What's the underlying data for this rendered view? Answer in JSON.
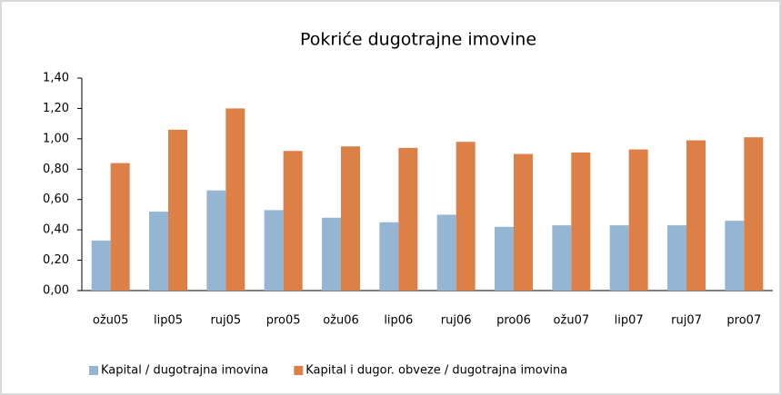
{
  "chart_data": {
    "type": "bar",
    "title": "Pokriće dugotrajne imovine",
    "categories": [
      "ožu05",
      "lip05",
      "ruj05",
      "pro05",
      "ožu06",
      "lip06",
      "ruj06",
      "pro06",
      "ožu07",
      "lip07",
      "ruj07",
      "pro07"
    ],
    "series": [
      {
        "name": "Kapital / dugotrajna imovina",
        "color": "#94b6d2",
        "values": [
          0.33,
          0.52,
          0.66,
          0.53,
          0.48,
          0.45,
          0.5,
          0.42,
          0.43,
          0.43,
          0.43,
          0.46
        ]
      },
      {
        "name": "Kapital i dugor. obveze / dugotrajna imovina",
        "color": "#dd8047",
        "values": [
          0.84,
          1.06,
          1.2,
          0.92,
          0.95,
          0.94,
          0.98,
          0.9,
          0.91,
          0.93,
          0.99,
          1.01
        ]
      }
    ],
    "ylim": [
      0,
      1.4
    ],
    "yticks": [
      {
        "value": 0,
        "label": "0,00"
      },
      {
        "value": 0.2,
        "label": "0,20"
      },
      {
        "value": 0.4,
        "label": "0,40"
      },
      {
        "value": 0.6,
        "label": "0,60"
      },
      {
        "value": 0.8,
        "label": "0,80"
      },
      {
        "value": 1.0,
        "label": "1,00"
      },
      {
        "value": 1.2,
        "label": "1,20"
      },
      {
        "value": 1.4,
        "label": "1,40"
      }
    ],
    "legend": "bottom"
  }
}
